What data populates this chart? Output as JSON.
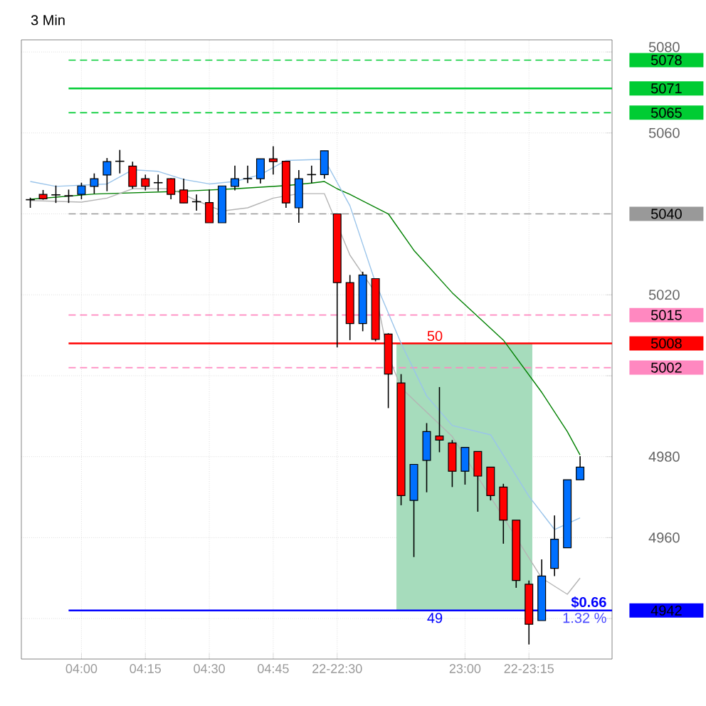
{
  "chart_data": {
    "type": "candlestick",
    "title": "3 Min",
    "categories": [
      null,
      null,
      null,
      null,
      "04:00",
      null,
      null,
      null,
      null,
      "04:15",
      null,
      null,
      null,
      null,
      "04:30",
      null,
      null,
      null,
      null,
      "04:45",
      null,
      null,
      null,
      null,
      "22-22:30",
      null,
      null,
      null,
      null,
      null,
      null,
      null,
      null,
      null,
      "23:00",
      null,
      null,
      null,
      null,
      "22-23:15",
      null,
      null,
      null,
      null
    ],
    "ohlc": [
      [
        5043.5,
        5044,
        5041.5,
        5043.5
      ],
      [
        5044.8,
        5045.9,
        5043.5,
        5043.7
      ],
      [
        5044.7,
        5047,
        5042.7,
        5044.7
      ],
      [
        5044.5,
        5046,
        5042.7,
        5044.4
      ],
      [
        5044.8,
        5047.7,
        5043.6,
        5046.9
      ],
      [
        5046.8,
        5050,
        5045,
        5048.7
      ],
      [
        5049.6,
        5053.8,
        5045.6,
        5052.9
      ],
      [
        5053,
        5055.8,
        5050,
        5053
      ],
      [
        5051.8,
        5052.9,
        5046.2,
        5046.8
      ],
      [
        5048.7,
        5049.7,
        5045.8,
        5046.8
      ],
      [
        5047.7,
        5049.7,
        5045.6,
        5047.7
      ],
      [
        5048.7,
        5048.8,
        5043.6,
        5044.8
      ],
      [
        5045.9,
        5048.7,
        5042.7,
        5042.7
      ],
      [
        5043,
        5044.8,
        5040.8,
        5043
      ],
      [
        5042.8,
        5046,
        5037.8,
        5037.8
      ],
      [
        5037.8,
        5046.9,
        5037.8,
        5046.9
      ],
      [
        5046.8,
        5051.9,
        5045.8,
        5048.7
      ],
      [
        5048.7,
        5051.9,
        5047.6,
        5048.7
      ],
      [
        5048.7,
        5053.6,
        5047.5,
        5053.6
      ],
      [
        5053.6,
        5056.7,
        5049.7,
        5052.9
      ],
      [
        5053,
        5053,
        5041.5,
        5042.7
      ],
      [
        5041.5,
        5050.8,
        5037.8,
        5048.7
      ],
      [
        5049.7,
        5051.9,
        5047.6,
        5049.7
      ],
      [
        5049.7,
        5055.6,
        5048.7,
        5055.6
      ],
      [
        5040,
        5040,
        5007,
        5023
      ],
      [
        5023,
        5024.9,
        5008.8,
        5012.9
      ],
      [
        5012.9,
        5025.7,
        5011,
        5024.9
      ],
      [
        5024,
        5024,
        5008.5,
        5009
      ],
      [
        5010.3,
        5010.5,
        4992,
        5000.4
      ],
      [
        4998.2,
        5000.4,
        4968,
        4970.4
      ],
      [
        4969.2,
        4978.1,
        4955.2,
        4978.1
      ],
      [
        4979.1,
        4988.3,
        4971.2,
        4986.2
      ],
      [
        4985.1,
        4997.2,
        4981.1,
        4984.1
      ],
      [
        4983.4,
        4984.1,
        4972.5,
        4976.4
      ],
      [
        4976.4,
        4982.3,
        4973.1,
        4982.3
      ],
      [
        4981.3,
        4981.3,
        4966.4,
        4975.2
      ],
      [
        4977.4,
        4977.4,
        4969.2,
        4970.4
      ],
      [
        4972.5,
        4973.3,
        4958.5,
        4964.3
      ],
      [
        4964.3,
        4964.3,
        4947.6,
        4949.4
      ],
      [
        4948.5,
        4949.4,
        4933.6,
        4938.6
      ],
      [
        4939.5,
        4954.6,
        4939.5,
        4950.5
      ],
      [
        4952.4,
        4965.5,
        4950.5,
        4959.6
      ],
      [
        4957.5,
        4974.3,
        4957.5,
        4974.3
      ],
      [
        4974.3,
        4980.1,
        4974.3,
        4977.4
      ]
    ],
    "colors": [
      "#000000",
      "#ff0000",
      "#000000",
      "#ff0000",
      "#0070ff",
      "#0070ff",
      "#0070ff",
      "#000000",
      "#ff0000",
      "#ff0000",
      "#000000",
      "#ff0000",
      "#ff0000",
      "#000000",
      "#ff0000",
      "#0070ff",
      "#0070ff",
      "#000000",
      "#0070ff",
      "#ff0000",
      "#ff0000",
      "#0070ff",
      "#000000",
      "#0070ff",
      "#ff0000",
      "#ff0000",
      "#0070ff",
      "#ff0000",
      "#ff0000",
      "#ff0000",
      "#0070ff",
      "#0070ff",
      "#ff0000",
      "#ff0000",
      "#0070ff",
      "#ff0000",
      "#ff0000",
      "#ff0000",
      "#ff0000",
      "#ff0000",
      "#0070ff",
      "#0070ff",
      "#0070ff",
      "#0070ff"
    ],
    "series": [
      {
        "type": "line",
        "color": "#008000",
        "values": [
          5043.6,
          null,
          null,
          null,
          null,
          5044.9,
          null,
          null,
          null,
          null,
          null,
          null,
          5045.6,
          null,
          null,
          null,
          5046.2,
          null,
          null,
          null,
          5047,
          null,
          5047.6,
          5048,
          5046.2,
          5044.8,
          null,
          null,
          5040,
          null,
          5031,
          null,
          null,
          5020.5,
          null,
          null,
          null,
          5008.8,
          null,
          null,
          4995.9,
          null,
          4986.2,
          4980.4
        ]
      },
      {
        "type": "line",
        "color": "#9ac4ea",
        "values": [
          5048,
          null,
          5046.8,
          null,
          null,
          null,
          5047.4,
          null,
          5050.9,
          null,
          5050.5,
          null,
          5048.5,
          null,
          5047.4,
          null,
          5048,
          null,
          5049.7,
          null,
          5053.2,
          null,
          null,
          5053.5,
          null,
          5042,
          null,
          5023,
          null,
          5008,
          null,
          4995,
          null,
          4987.7,
          null,
          null,
          4985.4,
          null,
          null,
          4970.2,
          null,
          4962,
          null,
          4964.9
        ]
      },
      {
        "type": "line",
        "color": "#b4b4b4",
        "values": [
          5043.3,
          null,
          null,
          null,
          5042.9,
          null,
          5043.9,
          null,
          5046.2,
          null,
          null,
          5046.2,
          null,
          5043.3,
          null,
          5040.7,
          null,
          5041.5,
          null,
          5043.9,
          null,
          5045,
          null,
          5045,
          null,
          5029.8,
          null,
          5020.5,
          5005,
          4997,
          null,
          null,
          null,
          4985,
          null,
          null,
          null,
          4965,
          null,
          null,
          4950,
          null,
          4946,
          4950
        ]
      }
    ],
    "ylim": [
      4930,
      5083
    ],
    "yticks": [
      5080,
      5060,
      {
        "value": 5040,
        "label": null
      },
      5020,
      {
        "value": 5000,
        "label": null
      },
      4980,
      4960,
      {
        "value": 4940,
        "label": null
      }
    ],
    "grid": true,
    "ref_lines": [
      {
        "axis": "y",
        "value": 5078,
        "label": "5078",
        "color": "#00cc33",
        "line_style": "dashed"
      },
      {
        "axis": "y",
        "value": 5071,
        "label": "5071",
        "color": "#00cc33",
        "line_style": "solid"
      },
      {
        "axis": "y",
        "value": 5065,
        "label": "5065",
        "color": "#00cc33",
        "line_style": "dashed"
      },
      {
        "axis": "y",
        "value": 5040,
        "label": "5040",
        "color": "#999999",
        "line_style": "dashed"
      },
      {
        "axis": "y",
        "value": 5015,
        "label": "5015",
        "color": "#ff88c0",
        "line_style": "dashed"
      },
      {
        "axis": "y",
        "value": 5008,
        "label": "5008",
        "color": "#ff0000",
        "line_style": "solid"
      },
      {
        "axis": "y",
        "value": 5002,
        "label": "5002",
        "color": "#ff88c0",
        "line_style": "dashed"
      },
      {
        "axis": "y",
        "value": 4942,
        "label": "4942",
        "color": "#0000ff",
        "line_style": "solid"
      }
    ],
    "bands": [
      {
        "axis": "y",
        "from": 4942,
        "to": 5008,
        "color": "#a6dcbc"
      }
    ],
    "annotations": [
      "50",
      "49",
      "$0.66",
      "1.32 %"
    ]
  }
}
